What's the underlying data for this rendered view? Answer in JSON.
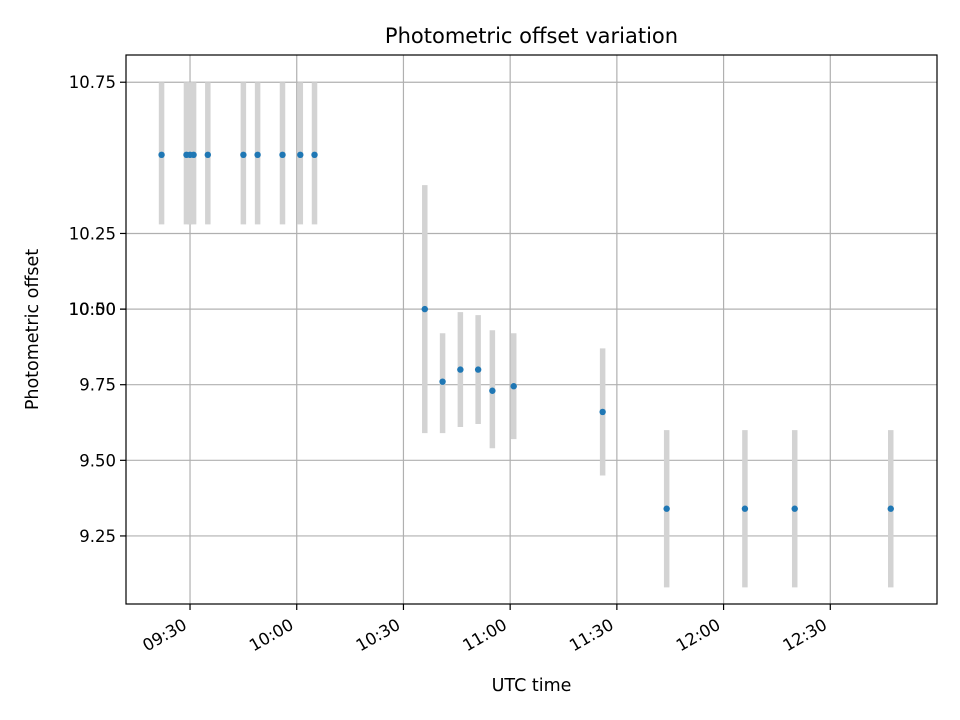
{
  "chart_data": {
    "type": "scatter",
    "title": "Photometric offset variation",
    "xlabel": "UTC time",
    "ylabel": "Photometric offset",
    "grid": true,
    "xlim": [
      "09:12",
      "13:00"
    ],
    "ylim": [
      9.025,
      10.84
    ],
    "x_ticks": [
      "09:30",
      "10:00",
      "10:30",
      "11:00",
      "11:30",
      "12:00",
      "12:30"
    ],
    "y_ticks": [
      "9.25",
      "9.50",
      "9.75",
      "10.00",
      "10.25",
      "10:50",
      "10.75"
    ],
    "colors": {
      "point": "#1f77b4",
      "errorbar": "#d3d3d3",
      "grid": "#b0b0b0"
    },
    "series": [
      {
        "points": [
          {
            "x": "09:22",
            "y": 10.51,
            "lo": 10.28,
            "hi": 10.75
          },
          {
            "x": "09:29",
            "y": 10.51,
            "lo": 10.28,
            "hi": 10.75
          },
          {
            "x": "09:30",
            "y": 10.51,
            "lo": 10.28,
            "hi": 10.75
          },
          {
            "x": "09:31",
            "y": 10.51,
            "lo": 10.28,
            "hi": 10.75
          },
          {
            "x": "09:35",
            "y": 10.51,
            "lo": 10.28,
            "hi": 10.75
          },
          {
            "x": "09:45",
            "y": 10.51,
            "lo": 10.28,
            "hi": 10.75
          },
          {
            "x": "09:49",
            "y": 10.51,
            "lo": 10.28,
            "hi": 10.75
          },
          {
            "x": "09:56",
            "y": 10.51,
            "lo": 10.28,
            "hi": 10.75
          },
          {
            "x": "10:01",
            "y": 10.51,
            "lo": 10.28,
            "hi": 10.75
          },
          {
            "x": "10:05",
            "y": 10.51,
            "lo": 10.28,
            "hi": 10.75
          },
          {
            "x": "10:36",
            "y": 10.0,
            "lo": 9.59,
            "hi": 10.41
          },
          {
            "x": "10:41",
            "y": 9.76,
            "lo": 9.59,
            "hi": 9.92
          },
          {
            "x": "10:46",
            "y": 9.8,
            "lo": 9.61,
            "hi": 9.99
          },
          {
            "x": "10:51",
            "y": 9.8,
            "lo": 9.62,
            "hi": 9.98
          },
          {
            "x": "10:55",
            "y": 9.73,
            "lo": 9.54,
            "hi": 9.93
          },
          {
            "x": "11:01",
            "y": 9.745,
            "lo": 9.57,
            "hi": 9.92
          },
          {
            "x": "11:26",
            "y": 9.66,
            "lo": 9.45,
            "hi": 9.87
          },
          {
            "x": "11:44",
            "y": 9.34,
            "lo": 9.08,
            "hi": 9.6
          },
          {
            "x": "12:06",
            "y": 9.34,
            "lo": 9.08,
            "hi": 9.6
          },
          {
            "x": "12:20",
            "y": 9.34,
            "lo": 9.08,
            "hi": 9.6
          },
          {
            "x": "12:47",
            "y": 9.34,
            "lo": 9.08,
            "hi": 9.6
          }
        ]
      }
    ]
  }
}
